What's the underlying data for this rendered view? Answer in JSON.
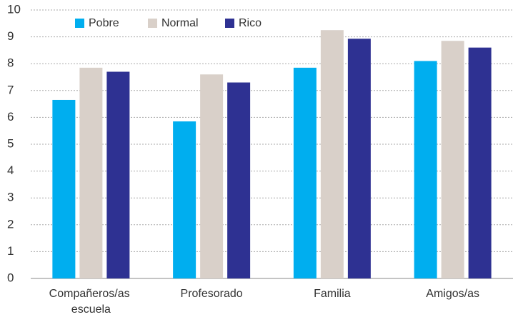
{
  "chart_data": {
    "type": "bar",
    "categories": [
      "Compañeros/as escuela",
      "Profesorado",
      "Familia",
      "Amigos/as"
    ],
    "series": [
      {
        "name": "Pobre",
        "color": "#00aeef",
        "values": [
          6.65,
          5.85,
          7.85,
          8.1
        ]
      },
      {
        "name": "Normal",
        "color": "#d9d0c9",
        "values": [
          7.85,
          7.6,
          9.25,
          8.85
        ]
      },
      {
        "name": "Rico",
        "color": "#2e3192",
        "values": [
          7.7,
          7.3,
          8.93,
          8.6
        ]
      }
    ],
    "ylim": [
      0,
      10
    ],
    "yticks": [
      0,
      1,
      2,
      3,
      4,
      5,
      6,
      7,
      8,
      9,
      10
    ],
    "grid": true,
    "legend": "top-left"
  }
}
